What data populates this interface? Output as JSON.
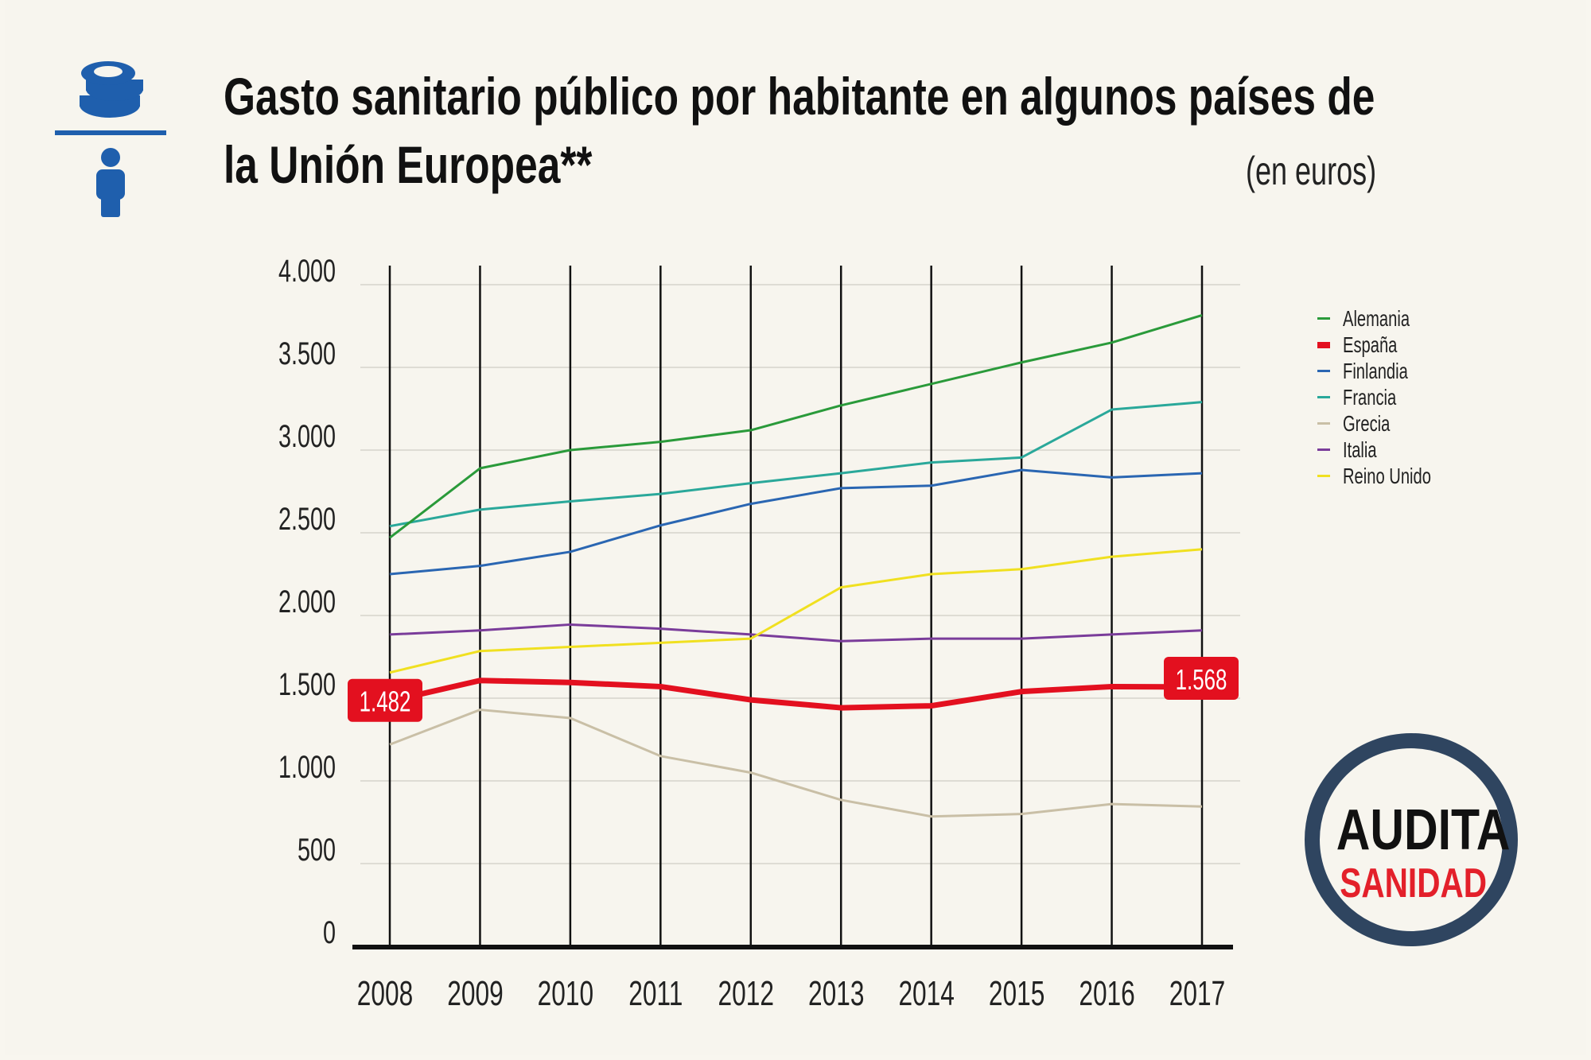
{
  "header": {
    "title_line1": "Gasto sanitario público por habitante en algunos países de",
    "title_line2": "la Unión Europea**",
    "unit": "(en euros)",
    "icon": "coins-per-person-icon",
    "icon_color": "#1f5fad"
  },
  "logo": {
    "line1": "AUDITA",
    "line2": "SANIDAD",
    "ring_color": "#2f4560",
    "accent": "#e3202a"
  },
  "chart_data": {
    "type": "line",
    "title": "Gasto sanitario público por habitante en algunos países de la Unión Europea**",
    "ylabel": "(en euros)",
    "xlabel": "",
    "categories": [
      "2008",
      "2009",
      "2010",
      "2011",
      "2012",
      "2013",
      "2014",
      "2015",
      "2016",
      "2017"
    ],
    "ylim": [
      0,
      4000
    ],
    "yticks": [
      0,
      500,
      1000,
      1500,
      2000,
      2500,
      3000,
      3500,
      4000
    ],
    "ytick_labels": [
      "0",
      "500",
      "1.000",
      "1.500",
      "2.000",
      "2.500",
      "3.000",
      "3.500",
      "4.000"
    ],
    "grid": true,
    "legend_position": "right",
    "series": [
      {
        "name": "Alemania",
        "color": "#2a9a3a",
        "values": [
          2470,
          2890,
          3000,
          3050,
          3120,
          3270,
          3400,
          3530,
          3650,
          3815
        ]
      },
      {
        "name": "España",
        "color": "#e3101f",
        "values": [
          1482,
          1607,
          1595,
          1570,
          1490,
          1442,
          1454,
          1540,
          1570,
          1568
        ]
      },
      {
        "name": "Finlandia",
        "color": "#2a66b2",
        "values": [
          2250,
          2300,
          2385,
          2545,
          2675,
          2770,
          2785,
          2880,
          2835,
          2860
        ]
      },
      {
        "name": "Francia",
        "color": "#2aa89a",
        "values": [
          2540,
          2640,
          2690,
          2735,
          2800,
          2860,
          2925,
          2955,
          3245,
          3290
        ]
      },
      {
        "name": "Grecia",
        "color": "#c9bfa6",
        "values": [
          1220,
          1430,
          1380,
          1150,
          1050,
          885,
          785,
          800,
          860,
          845
        ]
      },
      {
        "name": "Italia",
        "color": "#7a3c9a",
        "values": [
          1885,
          1910,
          1945,
          1920,
          1885,
          1845,
          1860,
          1860,
          1885,
          1910
        ]
      },
      {
        "name": "Reino Unido",
        "color": "#f0e020",
        "values": [
          1655,
          1785,
          1810,
          1835,
          1860,
          2170,
          2250,
          2280,
          2355,
          2400
        ]
      }
    ],
    "annotations": [
      {
        "series": "España",
        "category": "2008",
        "text": "1.482"
      },
      {
        "series": "España",
        "category": "2017",
        "text": "1.568"
      }
    ]
  }
}
